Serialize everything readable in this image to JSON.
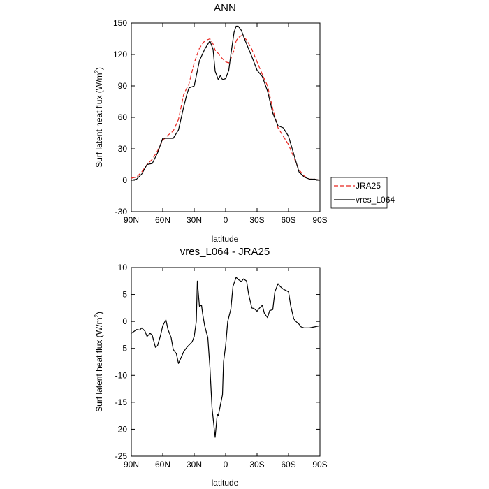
{
  "chart_data": [
    {
      "type": "line",
      "title": "ANN",
      "xlabel": "latitude",
      "ylabel": "Surf latent heat flux (W/m",
      "ylabel_sup": "2",
      "ylabel_close": ")",
      "xlim": [
        90,
        -90
      ],
      "ylim": [
        -30,
        150
      ],
      "x_ticks": [
        90,
        60,
        30,
        0,
        -30,
        -60,
        -90
      ],
      "x_tick_labels": [
        "90N",
        "60N",
        "30N",
        "0",
        "30S",
        "60S",
        "90S"
      ],
      "y_ticks": [
        -30,
        0,
        30,
        60,
        90,
        120,
        150
      ],
      "y_tick_labels": [
        "-30",
        "0",
        "30",
        "60",
        "90",
        "120",
        "150"
      ],
      "legend": {
        "position": "right",
        "entries": [
          "JRA25",
          "vres_L064"
        ]
      },
      "series": [
        {
          "name": "JRA25",
          "color": "#e8251f",
          "dash": "dashed",
          "x": [
            90,
            85,
            80,
            75,
            70,
            65,
            60,
            55,
            50,
            45,
            40,
            35,
            30,
            25,
            20,
            15,
            12,
            10,
            7,
            5,
            3,
            0,
            -3,
            -5,
            -8,
            -10,
            -12,
            -15,
            -20,
            -25,
            -30,
            -35,
            -40,
            -45,
            -50,
            -55,
            -60,
            -65,
            -70,
            -75,
            -80,
            -85,
            -90
          ],
          "y": [
            2,
            3,
            8,
            15,
            20,
            28,
            38,
            43,
            47,
            58,
            82,
            92,
            112,
            126,
            133,
            135,
            130,
            124,
            121,
            118,
            116,
            113,
            112,
            116,
            124,
            133,
            136,
            138,
            134,
            125,
            113,
            101,
            90,
            68,
            50,
            42,
            34,
            22,
            10,
            4,
            1,
            1,
            0
          ]
        },
        {
          "name": "vres_L064",
          "color": "#000000",
          "dash": "solid",
          "x": [
            90,
            85,
            80,
            75,
            70,
            65,
            60,
            55,
            50,
            45,
            40,
            37,
            35,
            30,
            25,
            20,
            15,
            12,
            10,
            7,
            5,
            3,
            0,
            -3,
            -5,
            -8,
            -10,
            -12,
            -15,
            -18,
            -20,
            -25,
            -30,
            -35,
            -40,
            -45,
            -50,
            -55,
            -60,
            -65,
            -70,
            -75,
            -80,
            -85,
            -90
          ],
          "y": [
            0,
            1,
            6,
            15,
            16,
            26,
            40,
            40,
            40,
            48,
            70,
            82,
            88,
            90,
            114,
            125,
            133,
            125,
            104,
            96,
            100,
            96,
            97,
            105,
            120,
            141,
            147,
            147,
            143,
            135,
            130,
            118,
            105,
            99,
            85,
            64,
            52,
            50,
            42,
            25,
            8,
            3,
            1,
            1,
            0
          ]
        }
      ]
    },
    {
      "type": "line",
      "title": "vres_L064 - JRA25",
      "xlabel": "latitude",
      "ylabel": "Surf latent heat flux (W/m",
      "ylabel_sup": "2",
      "ylabel_close": ")",
      "xlim": [
        90,
        -90
      ],
      "ylim": [
        -25,
        10
      ],
      "x_ticks": [
        90,
        60,
        30,
        0,
        -30,
        -60,
        -90
      ],
      "x_tick_labels": [
        "90N",
        "60N",
        "30N",
        "0",
        "30S",
        "60S",
        "90S"
      ],
      "y_ticks": [
        -25,
        -20,
        -15,
        -10,
        -5,
        0,
        5,
        10
      ],
      "y_tick_labels": [
        "-25",
        "-20",
        "-15",
        "-10",
        "-5",
        "0",
        "5",
        "10"
      ],
      "series": [
        {
          "name": "",
          "color": "#000000",
          "dash": "solid",
          "x": [
            90,
            87,
            85,
            82,
            80,
            77,
            75,
            72,
            70,
            67,
            65,
            62,
            60,
            57,
            55,
            52,
            50,
            47,
            45,
            42,
            40,
            37,
            35,
            32,
            30,
            28,
            27,
            25,
            23,
            22,
            20,
            17,
            15,
            13,
            10,
            8,
            7,
            5,
            3,
            2,
            0,
            -2,
            -5,
            -7,
            -10,
            -12,
            -15,
            -17,
            -20,
            -22,
            -25,
            -27,
            -30,
            -32,
            -35,
            -37,
            -40,
            -42,
            -45,
            -47,
            -50,
            -52,
            -55,
            -57,
            -60,
            -62,
            -65,
            -67,
            -70,
            -72,
            -75,
            -77,
            -80,
            -85,
            -90
          ],
          "y": [
            -2.2,
            -1.8,
            -1.5,
            -1.6,
            -1.2,
            -1.8,
            -2.8,
            -2.2,
            -2.6,
            -4.8,
            -4.5,
            -2.5,
            -0.8,
            0.3,
            -1.5,
            -3.0,
            -5.2,
            -6.0,
            -7.8,
            -6.5,
            -5.6,
            -4.8,
            -4.4,
            -3.8,
            -2.8,
            0,
            7.5,
            2.8,
            3.0,
            1.5,
            -0.8,
            -3.0,
            -8.5,
            -16,
            -21.5,
            -17.2,
            -17.5,
            -15.5,
            -13.6,
            -7.5,
            -4.5,
            0,
            2.3,
            6.5,
            8.2,
            7.8,
            7.4,
            7.9,
            7.5,
            5.0,
            2.5,
            2.4,
            1.9,
            2.4,
            3.0,
            1.5,
            0.7,
            2.0,
            2.2,
            5.5,
            7.0,
            6.5,
            6.0,
            5.8,
            5.5,
            3.0,
            0.5,
            0,
            -0.5,
            -1.0,
            -1.2,
            -1.2,
            -1.2,
            -1.0,
            -0.8
          ]
        }
      ]
    }
  ]
}
